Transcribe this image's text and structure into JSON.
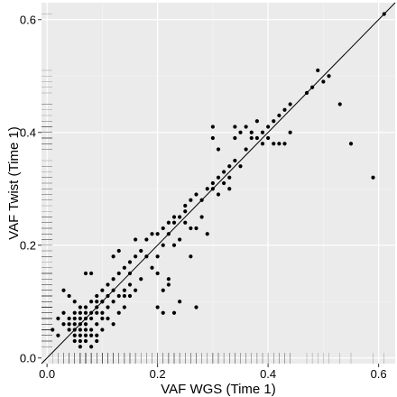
{
  "chart_data": {
    "type": "scatter",
    "xlabel": "VAF WGS (Time 1)",
    "ylabel": "VAF Twist (Time 1)",
    "xlim": [
      -0.01,
      0.63
    ],
    "ylim": [
      -0.01,
      0.63
    ],
    "x_ticks": [
      {
        "value": 0.0,
        "label": "0.0"
      },
      {
        "value": 0.2,
        "label": "0.2"
      },
      {
        "value": 0.4,
        "label": "0.4"
      },
      {
        "value": 0.6,
        "label": "0.6"
      }
    ],
    "y_ticks": [
      {
        "value": 0.0,
        "label": "0.0"
      },
      {
        "value": 0.2,
        "label": "0.2"
      },
      {
        "value": 0.4,
        "label": "0.4"
      },
      {
        "value": 0.6,
        "label": "0.6"
      }
    ],
    "grid": true,
    "reference_line": {
      "type": "identity",
      "slope": 1,
      "intercept": 0
    },
    "rug": {
      "x_axis": true,
      "y_axis": true
    },
    "points": [
      [
        0.61,
        0.61
      ],
      [
        0.59,
        0.32
      ],
      [
        0.55,
        0.38
      ],
      [
        0.53,
        0.45
      ],
      [
        0.51,
        0.5
      ],
      [
        0.49,
        0.51
      ],
      [
        0.5,
        0.49
      ],
      [
        0.48,
        0.48
      ],
      [
        0.47,
        0.47
      ],
      [
        0.43,
        0.44
      ],
      [
        0.44,
        0.45
      ],
      [
        0.42,
        0.43
      ],
      [
        0.41,
        0.42
      ],
      [
        0.4,
        0.41
      ],
      [
        0.39,
        0.4
      ],
      [
        0.38,
        0.39
      ],
      [
        0.37,
        0.39
      ],
      [
        0.36,
        0.37
      ],
      [
        0.44,
        0.4
      ],
      [
        0.43,
        0.38
      ],
      [
        0.42,
        0.38
      ],
      [
        0.41,
        0.38
      ],
      [
        0.39,
        0.38
      ],
      [
        0.37,
        0.4
      ],
      [
        0.4,
        0.39
      ],
      [
        0.35,
        0.4
      ],
      [
        0.34,
        0.39
      ],
      [
        0.34,
        0.41
      ],
      [
        0.36,
        0.41
      ],
      [
        0.38,
        0.42
      ],
      [
        0.3,
        0.41
      ],
      [
        0.3,
        0.39
      ],
      [
        0.31,
        0.37
      ],
      [
        0.34,
        0.35
      ],
      [
        0.33,
        0.34
      ],
      [
        0.32,
        0.33
      ],
      [
        0.31,
        0.32
      ],
      [
        0.3,
        0.31
      ],
      [
        0.35,
        0.34
      ],
      [
        0.33,
        0.32
      ],
      [
        0.32,
        0.31
      ],
      [
        0.3,
        0.3
      ],
      [
        0.29,
        0.3
      ],
      [
        0.28,
        0.28
      ],
      [
        0.33,
        0.3
      ],
      [
        0.27,
        0.29
      ],
      [
        0.26,
        0.28
      ],
      [
        0.25,
        0.27
      ],
      [
        0.24,
        0.25
      ],
      [
        0.25,
        0.24
      ],
      [
        0.26,
        0.23
      ],
      [
        0.31,
        0.29
      ],
      [
        0.23,
        0.25
      ],
      [
        0.22,
        0.24
      ],
      [
        0.21,
        0.23
      ],
      [
        0.2,
        0.22
      ],
      [
        0.24,
        0.21
      ],
      [
        0.22,
        0.22
      ],
      [
        0.23,
        0.2
      ],
      [
        0.21,
        0.2
      ],
      [
        0.19,
        0.22
      ],
      [
        0.18,
        0.21
      ],
      [
        0.18,
        0.18
      ],
      [
        0.17,
        0.19
      ],
      [
        0.16,
        0.21
      ],
      [
        0.2,
        0.18
      ],
      [
        0.19,
        0.16
      ],
      [
        0.16,
        0.18
      ],
      [
        0.15,
        0.17
      ],
      [
        0.15,
        0.15
      ],
      [
        0.14,
        0.16
      ],
      [
        0.13,
        0.15
      ],
      [
        0.12,
        0.14
      ],
      [
        0.11,
        0.13
      ],
      [
        0.1,
        0.12
      ],
      [
        0.1,
        0.1
      ],
      [
        0.09,
        0.09
      ],
      [
        0.12,
        0.12
      ],
      [
        0.13,
        0.11
      ],
      [
        0.14,
        0.12
      ],
      [
        0.15,
        0.13
      ],
      [
        0.14,
        0.11
      ],
      [
        0.12,
        0.18
      ],
      [
        0.13,
        0.19
      ],
      [
        0.2,
        0.15
      ],
      [
        0.21,
        0.12
      ],
      [
        0.2,
        0.09
      ],
      [
        0.21,
        0.08
      ],
      [
        0.23,
        0.08
      ],
      [
        0.22,
        0.14
      ],
      [
        0.17,
        0.14
      ],
      [
        0.16,
        0.12
      ],
      [
        0.15,
        0.11
      ],
      [
        0.14,
        0.09
      ],
      [
        0.13,
        0.08
      ],
      [
        0.12,
        0.1
      ],
      [
        0.11,
        0.11
      ],
      [
        0.1,
        0.1
      ],
      [
        0.09,
        0.11
      ],
      [
        0.08,
        0.15
      ],
      [
        0.07,
        0.15
      ],
      [
        0.08,
        0.1
      ],
      [
        0.07,
        0.08
      ],
      [
        0.06,
        0.07
      ],
      [
        0.05,
        0.06
      ],
      [
        0.04,
        0.05
      ],
      [
        0.05,
        0.04
      ],
      [
        0.06,
        0.05
      ],
      [
        0.07,
        0.06
      ],
      [
        0.06,
        0.09
      ],
      [
        0.05,
        0.1
      ],
      [
        0.04,
        0.11
      ],
      [
        0.03,
        0.12
      ],
      [
        0.03,
        0.08
      ],
      [
        0.02,
        0.07
      ],
      [
        0.01,
        0.05
      ],
      [
        0.02,
        0.04
      ],
      [
        0.03,
        0.06
      ],
      [
        0.04,
        0.07
      ],
      [
        0.05,
        0.08
      ],
      [
        0.06,
        0.06
      ],
      [
        0.07,
        0.05
      ],
      [
        0.08,
        0.04
      ],
      [
        0.05,
        0.05
      ],
      [
        0.06,
        0.04
      ],
      [
        0.07,
        0.07
      ],
      [
        0.08,
        0.08
      ],
      [
        0.09,
        0.06
      ],
      [
        0.1,
        0.05
      ],
      [
        0.07,
        0.03
      ],
      [
        0.08,
        0.02
      ],
      [
        0.09,
        0.03
      ],
      [
        0.06,
        0.02
      ],
      [
        0.05,
        0.03
      ],
      [
        0.08,
        0.07
      ],
      [
        0.09,
        0.08
      ],
      [
        0.1,
        0.08
      ],
      [
        0.11,
        0.09
      ],
      [
        0.09,
        0.1
      ],
      [
        0.07,
        0.09
      ],
      [
        0.06,
        0.08
      ],
      [
        0.05,
        0.07
      ],
      [
        0.04,
        0.06
      ],
      [
        0.11,
        0.07
      ],
      [
        0.12,
        0.06
      ],
      [
        0.1,
        0.07
      ],
      [
        0.07,
        0.04
      ],
      [
        0.06,
        0.03
      ],
      [
        0.08,
        0.05
      ],
      [
        0.09,
        0.04
      ],
      [
        0.27,
        0.09
      ],
      [
        0.24,
        0.1
      ],
      [
        0.22,
        0.13
      ],
      [
        0.26,
        0.18
      ],
      [
        0.29,
        0.22
      ],
      [
        0.28,
        0.25
      ],
      [
        0.27,
        0.23
      ],
      [
        0.25,
        0.26
      ],
      [
        0.23,
        0.24
      ]
    ]
  }
}
